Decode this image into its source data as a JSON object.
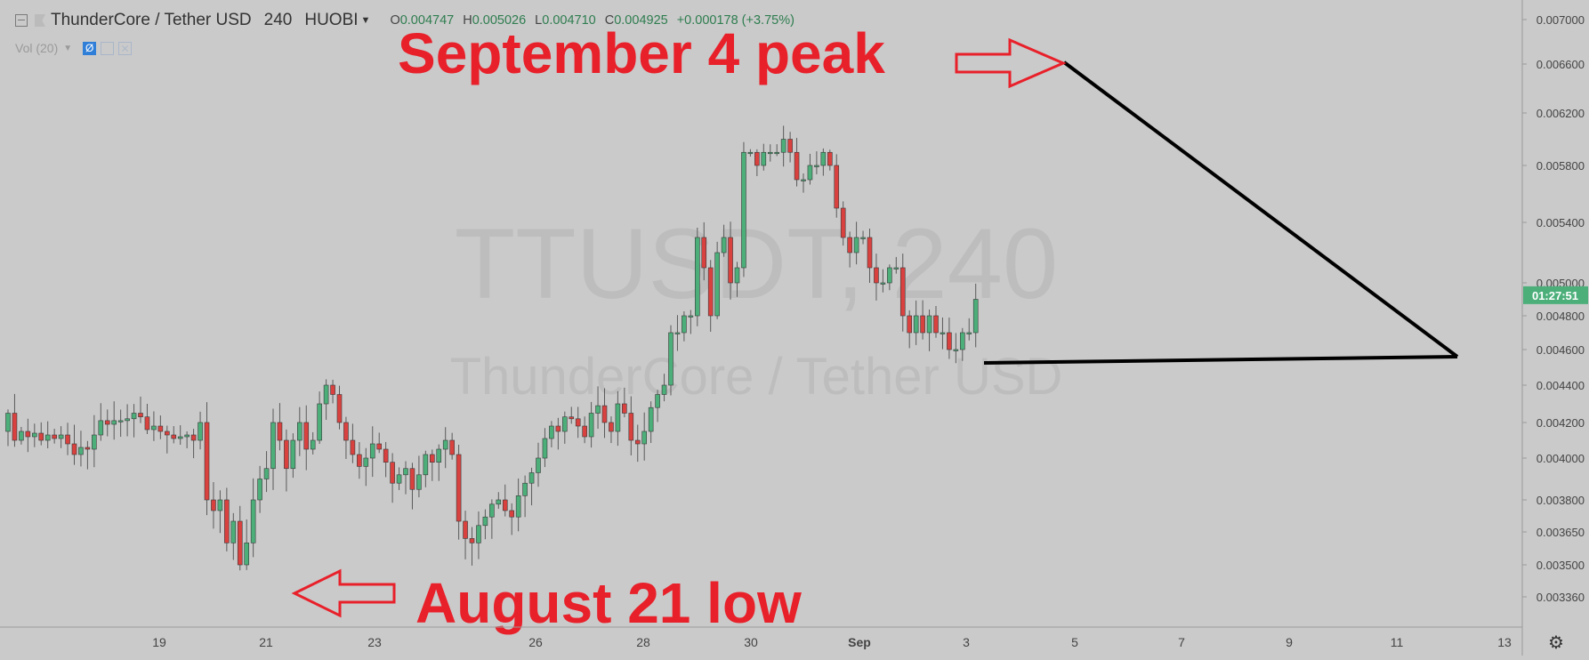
{
  "header": {
    "symbol": "ThunderCore / Tether USD",
    "interval": "240",
    "exchange": "HUOBI",
    "ohlc": {
      "open_key": "O",
      "open": "0.004747",
      "high_key": "H",
      "high": "0.005026",
      "low_key": "L",
      "low": "0.004710",
      "close_key": "C",
      "close": "0.004925",
      "change": "+0.000178 (+3.75%)"
    }
  },
  "volume_indicator": {
    "label": "Vol (20)"
  },
  "watermark": {
    "ticker": "TTUSDT, 240",
    "name": "ThunderCore / Tether USD"
  },
  "price_axis": {
    "labels": [
      "0.007000",
      "0.006600",
      "0.006200",
      "0.005800",
      "0.005400",
      "0.005000",
      "0.004800",
      "0.004600",
      "0.004400",
      "0.004200",
      "0.004000",
      "0.003800",
      "0.003650",
      "0.003500",
      "0.003360"
    ],
    "last_price": "0.004925",
    "countdown": "01:27:51",
    "countdown_color": "#4caf7a"
  },
  "time_axis": {
    "labels": [
      "19",
      "21",
      "23",
      "26",
      "28",
      "30",
      "Sep",
      "3",
      "5",
      "7",
      "9",
      "11",
      "13"
    ]
  },
  "annotations": {
    "peak": "September 4 peak",
    "low": "August 21 low",
    "color": "#e8202a"
  },
  "colors": {
    "up": "#4caf7a",
    "down": "#d9413f",
    "background": "#cacaca",
    "trendline": "#000000"
  },
  "chart_data": {
    "type": "candlestick",
    "title": "ThunderCore / Tether USD",
    "interval": "240",
    "x_axis_labels": [
      "19",
      "21",
      "23",
      "26",
      "28",
      "30",
      "Sep",
      "3",
      "5",
      "7",
      "9",
      "11",
      "13"
    ],
    "y_axis_labels": [
      "0.007000",
      "0.006600",
      "0.006200",
      "0.005800",
      "0.005400",
      "0.005000",
      "0.004800",
      "0.004600",
      "0.004400",
      "0.004200",
      "0.004000",
      "0.003800",
      "0.003650",
      "0.003500",
      "0.003360"
    ],
    "closes": [
      0.00425,
      0.0041,
      0.00415,
      0.00412,
      0.00414,
      0.0041,
      0.00413,
      0.00411,
      0.00413,
      0.00408,
      0.00402,
      0.00406,
      0.00405,
      0.00413,
      0.00421,
      0.00419,
      0.00421,
      0.00421,
      0.00422,
      0.00425,
      0.00423,
      0.00416,
      0.00418,
      0.00415,
      0.00413,
      0.00411,
      0.00412,
      0.00413,
      0.0041,
      0.0042,
      0.0038,
      0.00375,
      0.0038,
      0.0036,
      0.0037,
      0.0035,
      0.0036,
      0.0038,
      0.0039,
      0.00395,
      0.0042,
      0.0041,
      0.00395,
      0.0041,
      0.0042,
      0.00405,
      0.0041,
      0.0043,
      0.0044,
      0.00435,
      0.0042,
      0.0041,
      0.00402,
      0.00396,
      0.004,
      0.00408,
      0.00405,
      0.00398,
      0.00388,
      0.00392,
      0.00395,
      0.00385,
      0.00392,
      0.00402,
      0.00398,
      0.00405,
      0.0041,
      0.00402,
      0.0037,
      0.00362,
      0.0036,
      0.00368,
      0.00372,
      0.00378,
      0.0038,
      0.00375,
      0.00372,
      0.00382,
      0.00388,
      0.00393,
      0.004,
      0.00411,
      0.00418,
      0.00415,
      0.00423,
      0.00422,
      0.00418,
      0.00412,
      0.00425,
      0.00429,
      0.0042,
      0.00415,
      0.0043,
      0.00425,
      0.0041,
      0.00408,
      0.00415,
      0.00428,
      0.00435,
      0.0044,
      0.0047,
      0.0047,
      0.0048,
      0.0048,
      0.0053,
      0.0051,
      0.0048,
      0.0052,
      0.0053,
      0.005,
      0.0051,
      0.0059,
      0.0059,
      0.0058,
      0.0059,
      0.0059,
      0.0059,
      0.006,
      0.0059,
      0.0057,
      0.0057,
      0.0058,
      0.0058,
      0.0059,
      0.0058,
      0.0055,
      0.0053,
      0.0052,
      0.0053,
      0.0053,
      0.0051,
      0.005,
      0.005,
      0.0051,
      0.0051,
      0.0048,
      0.0047,
      0.0048,
      0.0047,
      0.0048,
      0.0047,
      0.0047,
      0.0046,
      0.0046,
      0.0047,
      0.0047,
      0.0049
    ]
  }
}
